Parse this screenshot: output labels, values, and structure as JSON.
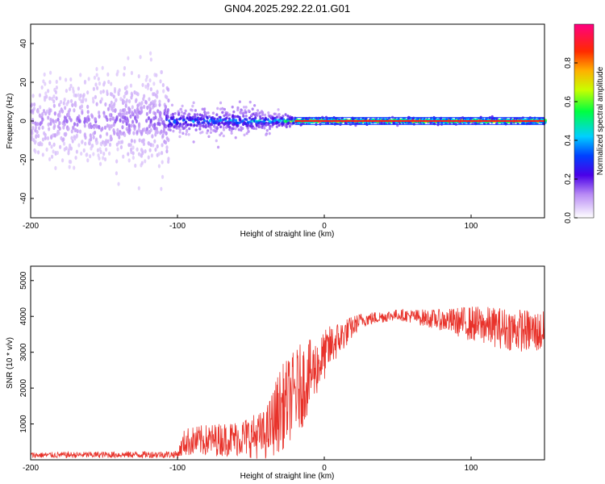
{
  "title": "GN04.2025.292.22.01.G01",
  "chart_data": [
    {
      "type": "heatmap",
      "name": "spectrogram",
      "xlabel": "Height of straight line (km)",
      "ylabel": "Frequency (Hz)",
      "xlim": [
        -200,
        150
      ],
      "ylim": [
        -50,
        50
      ],
      "xticks": [
        -200,
        -100,
        0,
        100
      ],
      "yticks": [
        -40,
        -20,
        0,
        20,
        40
      ],
      "colorbar": {
        "label": "Normalized spectral amplitude",
        "range": [
          0,
          1
        ],
        "ticks": [
          0.0,
          0.2,
          0.4,
          0.6,
          0.8
        ]
      },
      "ridge": [
        {
          "x": -200,
          "spread": 45,
          "amp": 0.15
        },
        {
          "x": -110,
          "spread": 40,
          "amp": 0.2
        },
        {
          "x": -105,
          "spread": 8,
          "amp": 0.45
        },
        {
          "x": -50,
          "spread": 8,
          "amp": 0.5
        },
        {
          "x": -30,
          "spread": 4,
          "amp": 0.55
        },
        {
          "x": -20,
          "spread": 1.5,
          "amp": 0.95
        },
        {
          "x": 150,
          "spread": 1.5,
          "amp": 0.95
        }
      ]
    },
    {
      "type": "line",
      "name": "snr",
      "xlabel": "Height of straight line (km)",
      "ylabel": "SNR (10 * v/v)",
      "xlim": [
        -200,
        150
      ],
      "ylim": [
        0,
        5400
      ],
      "xticks": [
        -200,
        -100,
        0,
        100
      ],
      "yticks": [
        1000,
        2000,
        3000,
        4000,
        5000
      ],
      "color": "#e8322a",
      "envelope": [
        {
          "x": -200,
          "mean": 130,
          "noise": 80
        },
        {
          "x": -100,
          "mean": 150,
          "noise": 100
        },
        {
          "x": -95,
          "mean": 500,
          "noise": 400
        },
        {
          "x": -60,
          "mean": 600,
          "noise": 500
        },
        {
          "x": -40,
          "mean": 700,
          "noise": 700
        },
        {
          "x": -30,
          "mean": 1400,
          "noise": 1200
        },
        {
          "x": -15,
          "mean": 2100,
          "noise": 1200
        },
        {
          "x": -5,
          "mean": 2600,
          "noise": 800
        },
        {
          "x": 5,
          "mean": 3200,
          "noise": 600
        },
        {
          "x": 25,
          "mean": 3900,
          "noise": 200
        },
        {
          "x": 50,
          "mean": 4050,
          "noise": 150
        },
        {
          "x": 80,
          "mean": 3900,
          "noise": 300
        },
        {
          "x": 100,
          "mean": 3800,
          "noise": 500
        },
        {
          "x": 125,
          "mean": 3650,
          "noise": 600
        },
        {
          "x": 150,
          "mean": 3550,
          "noise": 600
        }
      ]
    }
  ]
}
